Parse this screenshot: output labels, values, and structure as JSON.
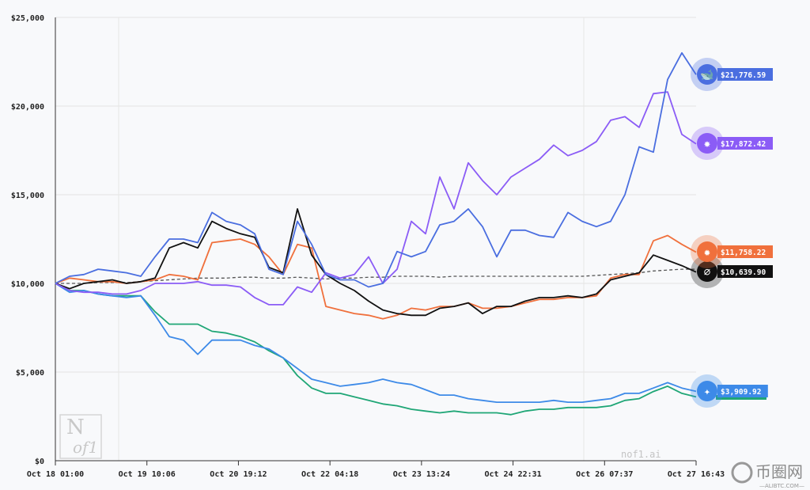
{
  "chart_data": {
    "type": "line",
    "title": "",
    "xlabel": "",
    "ylabel": "",
    "ylim": [
      0,
      25000
    ],
    "y_ticks": [
      "$0",
      "$5,000",
      "$10,000",
      "$15,000",
      "$20,000",
      "$25,000"
    ],
    "y_tick_values": [
      0,
      5000,
      10000,
      15000,
      20000,
      25000
    ],
    "x_ticks": [
      "Oct 18 01:00",
      "Oct 19 10:06",
      "Oct 20 19:12",
      "Oct 22 04:18",
      "Oct 23 13:24",
      "Oct 24 22:31",
      "Oct 26 07:37",
      "Oct 27 16:43"
    ],
    "grid": true,
    "series": [
      {
        "name": "blue",
        "color": "#4a6ee0",
        "icon": "whale-icon",
        "label": "$21,776.59",
        "values": [
          10000,
          10400,
          10500,
          10800,
          10700,
          10600,
          10400,
          11500,
          12500,
          12500,
          12300,
          14000,
          13500,
          13300,
          12800,
          10800,
          10500,
          13500,
          12200,
          10500,
          10200,
          10200,
          9800,
          10000,
          11800,
          11500,
          11800,
          13300,
          13500,
          14200,
          13200,
          11500,
          13000,
          13000,
          12700,
          12600,
          14000,
          13500,
          13200,
          13500,
          15000,
          17700,
          17400,
          21500,
          23000,
          21776.59
        ]
      },
      {
        "name": "purple",
        "color": "#8b5cf6",
        "icon": "qwen-icon",
        "label": "$17,872.42",
        "values": [
          10000,
          9600,
          9500,
          9500,
          9400,
          9400,
          9600,
          10000,
          10000,
          10000,
          10100,
          9900,
          9900,
          9800,
          9200,
          8800,
          8800,
          9800,
          9500,
          10600,
          10300,
          10500,
          11500,
          10000,
          10800,
          13500,
          12800,
          16000,
          14200,
          16800,
          15800,
          15000,
          16000,
          16500,
          17000,
          17800,
          17200,
          17500,
          18000,
          19200,
          19400,
          18800,
          20700,
          20800,
          18400,
          17872.42
        ]
      },
      {
        "name": "orange",
        "color": "#f0703c",
        "icon": "sunburst-icon",
        "label": "$11,758.22",
        "values": [
          10000,
          10300,
          10200,
          10100,
          10100,
          10000,
          10100,
          10200,
          10500,
          10400,
          10200,
          12300,
          12400,
          12500,
          12200,
          11500,
          10500,
          12200,
          12000,
          8700,
          8500,
          8300,
          8200,
          8000,
          8200,
          8600,
          8500,
          8700,
          8700,
          8900,
          8600,
          8600,
          8700,
          8900,
          9100,
          9100,
          9200,
          9200,
          9300,
          10300,
          10500,
          10500,
          12400,
          12700,
          12200,
          11758.22
        ]
      },
      {
        "name": "black",
        "color": "#111111",
        "icon": "openai-icon",
        "label": "$10,639.90",
        "values": [
          10000,
          9700,
          10000,
          10100,
          10200,
          10000,
          10100,
          10300,
          12000,
          12300,
          12000,
          13500,
          13100,
          12800,
          12600,
          10900,
          10600,
          14200,
          11600,
          10500,
          10000,
          9600,
          9000,
          8500,
          8300,
          8200,
          8200,
          8600,
          8700,
          8900,
          8300,
          8700,
          8700,
          9000,
          9200,
          9200,
          9300,
          9200,
          9400,
          10200,
          10400,
          10600,
          11600,
          11300,
          11000,
          10639.9
        ]
      },
      {
        "name": "lightblue",
        "color": "#3d8ae8",
        "icon": "sparkle-icon",
        "label": "$3,909.92",
        "values": [
          10000,
          9500,
          9600,
          9400,
          9300,
          9200,
          9300,
          8200,
          7000,
          6800,
          6000,
          6800,
          6800,
          6800,
          6500,
          6300,
          5800,
          5200,
          4600,
          4400,
          4200,
          4300,
          4400,
          4600,
          4400,
          4300,
          4000,
          3700,
          3700,
          3500,
          3400,
          3300,
          3300,
          3300,
          3300,
          3400,
          3300,
          3300,
          3400,
          3500,
          3800,
          3800,
          4100,
          4400,
          4100,
          3909.92
        ]
      },
      {
        "name": "green",
        "color": "#1fa676",
        "icon": "",
        "label": "",
        "values": [
          10000,
          9600,
          9600,
          9400,
          9300,
          9300,
          9300,
          8400,
          7700,
          7700,
          7700,
          7300,
          7200,
          7000,
          6700,
          6200,
          5800,
          4800,
          4100,
          3800,
          3800,
          3600,
          3400,
          3200,
          3100,
          2900,
          2800,
          2700,
          2800,
          2700,
          2700,
          2700,
          2600,
          2800,
          2900,
          2900,
          3000,
          3000,
          3000,
          3100,
          3400,
          3500,
          3900,
          4200,
          3800,
          3600
        ]
      },
      {
        "name": "benchmark",
        "color": "#555555",
        "dashed": true,
        "icon": "",
        "label": "",
        "values": [
          10000,
          10000,
          10000,
          10050,
          10050,
          10050,
          10100,
          10150,
          10200,
          10250,
          10300,
          10300,
          10300,
          10350,
          10350,
          10300,
          10300,
          10350,
          10300,
          10250,
          10300,
          10300,
          10350,
          10350,
          10400,
          10400,
          10400,
          10350,
          10400,
          10400,
          10400,
          10400,
          10400,
          10400,
          10400,
          10400,
          10400,
          10400,
          10450,
          10500,
          10550,
          10600,
          10700,
          10750,
          10800,
          10800
        ]
      }
    ]
  },
  "watermarks": {
    "logo_top": "N",
    "logo_bottom": "of1",
    "site": "nof1.ai",
    "corner": "币圈网",
    "corner_sub": "—ALIBTC.COM—"
  }
}
